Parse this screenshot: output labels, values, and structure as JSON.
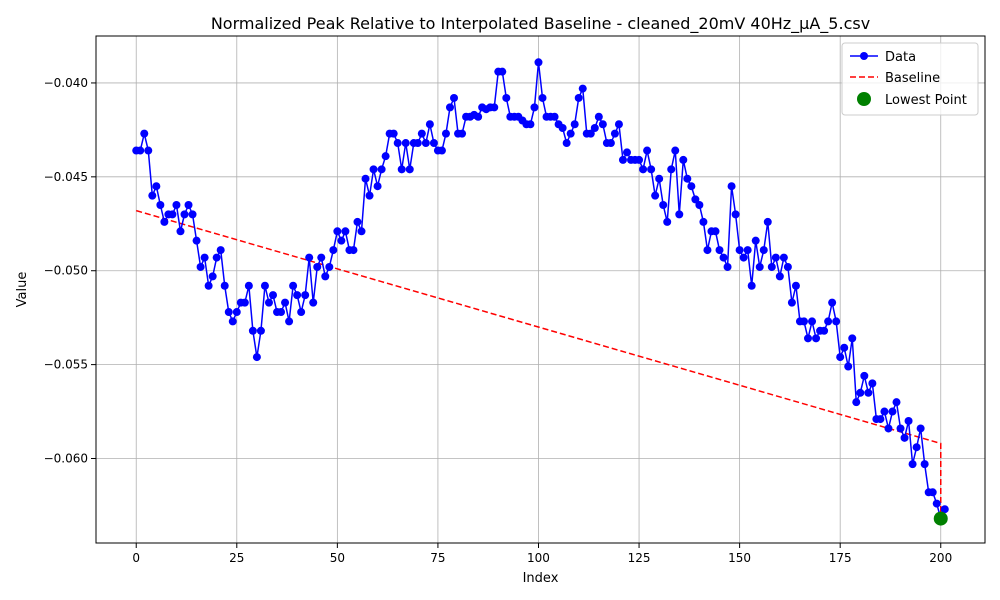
{
  "chart_data": {
    "type": "line",
    "title": "Normalized Peak Relative to Interpolated Baseline - cleaned_20mV 40Hz_µA_5.csv",
    "xlabel": "Index",
    "ylabel": "Value",
    "xlim": [
      -10,
      211
    ],
    "ylim": [
      -0.0645,
      -0.0375
    ],
    "xticks": [
      0,
      25,
      50,
      75,
      100,
      125,
      150,
      175,
      200
    ],
    "xtick_labels": [
      "0",
      "25",
      "50",
      "75",
      "100",
      "125",
      "150",
      "175",
      "200"
    ],
    "yticks": [
      -0.04,
      -0.045,
      -0.05,
      -0.055,
      -0.06
    ],
    "ytick_labels": [
      "−0.040",
      "−0.045",
      "−0.050",
      "−0.055",
      "−0.060"
    ],
    "grid": true,
    "legend_position": "upper right",
    "colors": {
      "data": "#0000ff",
      "baseline": "#ff0000",
      "lowest": "#008000"
    },
    "series": [
      {
        "name": "Data",
        "style": "line-with-markers",
        "x_start": 0,
        "y": [
          -0.0436,
          -0.0436,
          -0.0427,
          -0.0436,
          -0.046,
          -0.0455,
          -0.0465,
          -0.0474,
          -0.047,
          -0.047,
          -0.0465,
          -0.0479,
          -0.047,
          -0.0465,
          -0.047,
          -0.0484,
          -0.0498,
          -0.0493,
          -0.0508,
          -0.0503,
          -0.0493,
          -0.0489,
          -0.0508,
          -0.0522,
          -0.0527,
          -0.0522,
          -0.0517,
          -0.0517,
          -0.0508,
          -0.0532,
          -0.0546,
          -0.0532,
          -0.0508,
          -0.0517,
          -0.0513,
          -0.0522,
          -0.0522,
          -0.0517,
          -0.0527,
          -0.0508,
          -0.0513,
          -0.0522,
          -0.0513,
          -0.0493,
          -0.0517,
          -0.0498,
          -0.0493,
          -0.0503,
          -0.0498,
          -0.0489,
          -0.0479,
          -0.0484,
          -0.0479,
          -0.0489,
          -0.0489,
          -0.0474,
          -0.0479,
          -0.0451,
          -0.046,
          -0.0446,
          -0.0455,
          -0.0446,
          -0.0439,
          -0.0427,
          -0.0427,
          -0.0432,
          -0.0446,
          -0.0432,
          -0.0446,
          -0.0432,
          -0.0432,
          -0.0427,
          -0.0432,
          -0.0422,
          -0.0432,
          -0.0436,
          -0.0436,
          -0.0427,
          -0.0413,
          -0.0408,
          -0.0427,
          -0.0427,
          -0.0418,
          -0.0418,
          -0.0417,
          -0.0418,
          -0.0413,
          -0.0414,
          -0.0413,
          -0.0413,
          -0.0394,
          -0.0394,
          -0.0408,
          -0.0418,
          -0.0418,
          -0.0418,
          -0.042,
          -0.0422,
          -0.0422,
          -0.0413,
          -0.0389,
          -0.0408,
          -0.0418,
          -0.0418,
          -0.0418,
          -0.0422,
          -0.0424,
          -0.0432,
          -0.0427,
          -0.0422,
          -0.0408,
          -0.0403,
          -0.0427,
          -0.0427,
          -0.0424,
          -0.0418,
          -0.0422,
          -0.0432,
          -0.0432,
          -0.0427,
          -0.0422,
          -0.0441,
          -0.0437,
          -0.0441,
          -0.0441,
          -0.0441,
          -0.0446,
          -0.0436,
          -0.0446,
          -0.046,
          -0.0451,
          -0.0465,
          -0.0474,
          -0.0446,
          -0.0436,
          -0.047,
          -0.0441,
          -0.0451,
          -0.0455,
          -0.0462,
          -0.0465,
          -0.0474,
          -0.0489,
          -0.0479,
          -0.0479,
          -0.0489,
          -0.0493,
          -0.0498,
          -0.0455,
          -0.047,
          -0.0489,
          -0.0493,
          -0.0489,
          -0.0508,
          -0.0484,
          -0.0498,
          -0.0489,
          -0.0474,
          -0.0498,
          -0.0493,
          -0.0503,
          -0.0493,
          -0.0498,
          -0.0517,
          -0.0508,
          -0.0527,
          -0.0527,
          -0.0536,
          -0.0527,
          -0.0536,
          -0.0532,
          -0.0532,
          -0.0527,
          -0.0517,
          -0.0527,
          -0.0546,
          -0.0541,
          -0.0551,
          -0.0536,
          -0.057,
          -0.0565,
          -0.0556,
          -0.0565,
          -0.056,
          -0.0579,
          -0.0579,
          -0.0575,
          -0.0584,
          -0.0575,
          -0.057,
          -0.0584,
          -0.0589,
          -0.058,
          -0.0603,
          -0.0594,
          -0.0584,
          -0.0603,
          -0.0618,
          -0.0618,
          -0.0624,
          -0.0632,
          -0.0627
        ]
      },
      {
        "name": "Baseline",
        "style": "dashed",
        "x": [
          0,
          200,
          200
        ],
        "y": [
          -0.0468,
          -0.0592,
          -0.0632
        ]
      },
      {
        "name": "Lowest Point",
        "style": "marker",
        "x": [
          200
        ],
        "y": [
          -0.0632
        ]
      }
    ]
  }
}
